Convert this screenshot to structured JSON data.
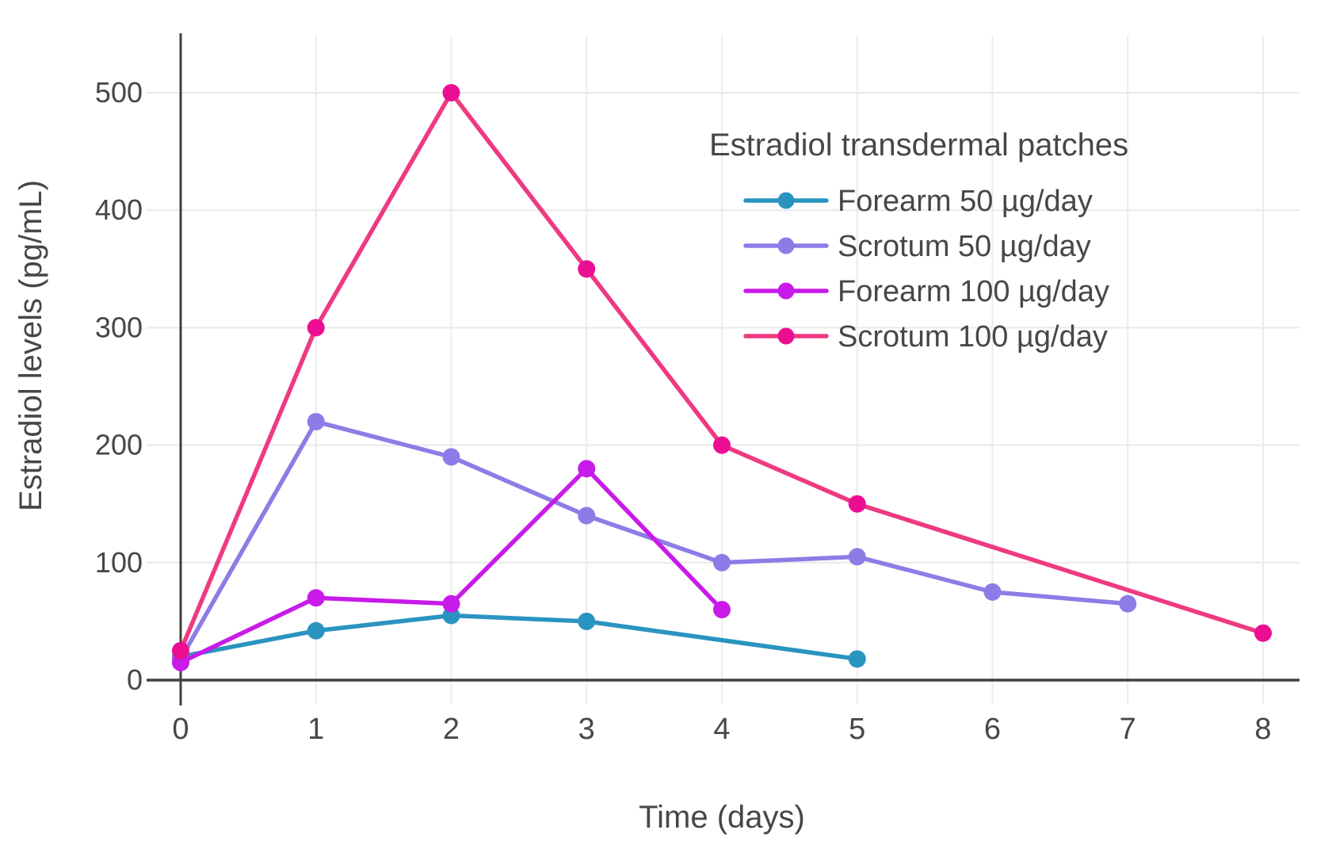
{
  "chart_data": {
    "type": "line",
    "title": "",
    "legend_title": "Estradiol transdermal patches",
    "xlabel": "Time (days)",
    "ylabel": "Estradiol levels (pg/mL)",
    "xlim": [
      0,
      8.3
    ],
    "ylim": [
      0,
      548
    ],
    "x_ticks": [
      0,
      1,
      2,
      3,
      4,
      5,
      6,
      7,
      8
    ],
    "y_ticks": [
      0,
      100,
      200,
      300,
      400,
      500
    ],
    "grid": true,
    "legend_position": "inside-top-right",
    "series": [
      {
        "name": "Forearm 50 µg/day",
        "color": "#2a94c1",
        "marker_color": "#2a94c1",
        "x": [
          0,
          1,
          2,
          3,
          5
        ],
        "y": [
          20,
          42,
          55,
          50,
          18
        ]
      },
      {
        "name": "Scrotum 50 µg/day",
        "color": "#8e7ce6",
        "marker_color": "#8e7ce6",
        "x": [
          0,
          1,
          2,
          3,
          4,
          5,
          6,
          7
        ],
        "y": [
          18,
          220,
          190,
          140,
          100,
          105,
          75,
          65
        ]
      },
      {
        "name": "Forearm 100 µg/day",
        "color": "#c81ae9",
        "marker_color": "#c81ae9",
        "x": [
          0,
          1,
          2,
          3,
          4
        ],
        "y": [
          15,
          70,
          65,
          180,
          60
        ]
      },
      {
        "name": "Scrotum 100 µg/day",
        "color": "#ee3a81",
        "marker_color": "#eb0e92",
        "x": [
          0,
          1,
          2,
          3,
          4,
          5,
          8
        ],
        "y": [
          25,
          300,
          500,
          350,
          200,
          150,
          40
        ]
      }
    ],
    "axis_color": "#404040",
    "text_color": "#474747",
    "grid_color": "#e9e9e9",
    "background_color": "#ffffff"
  }
}
